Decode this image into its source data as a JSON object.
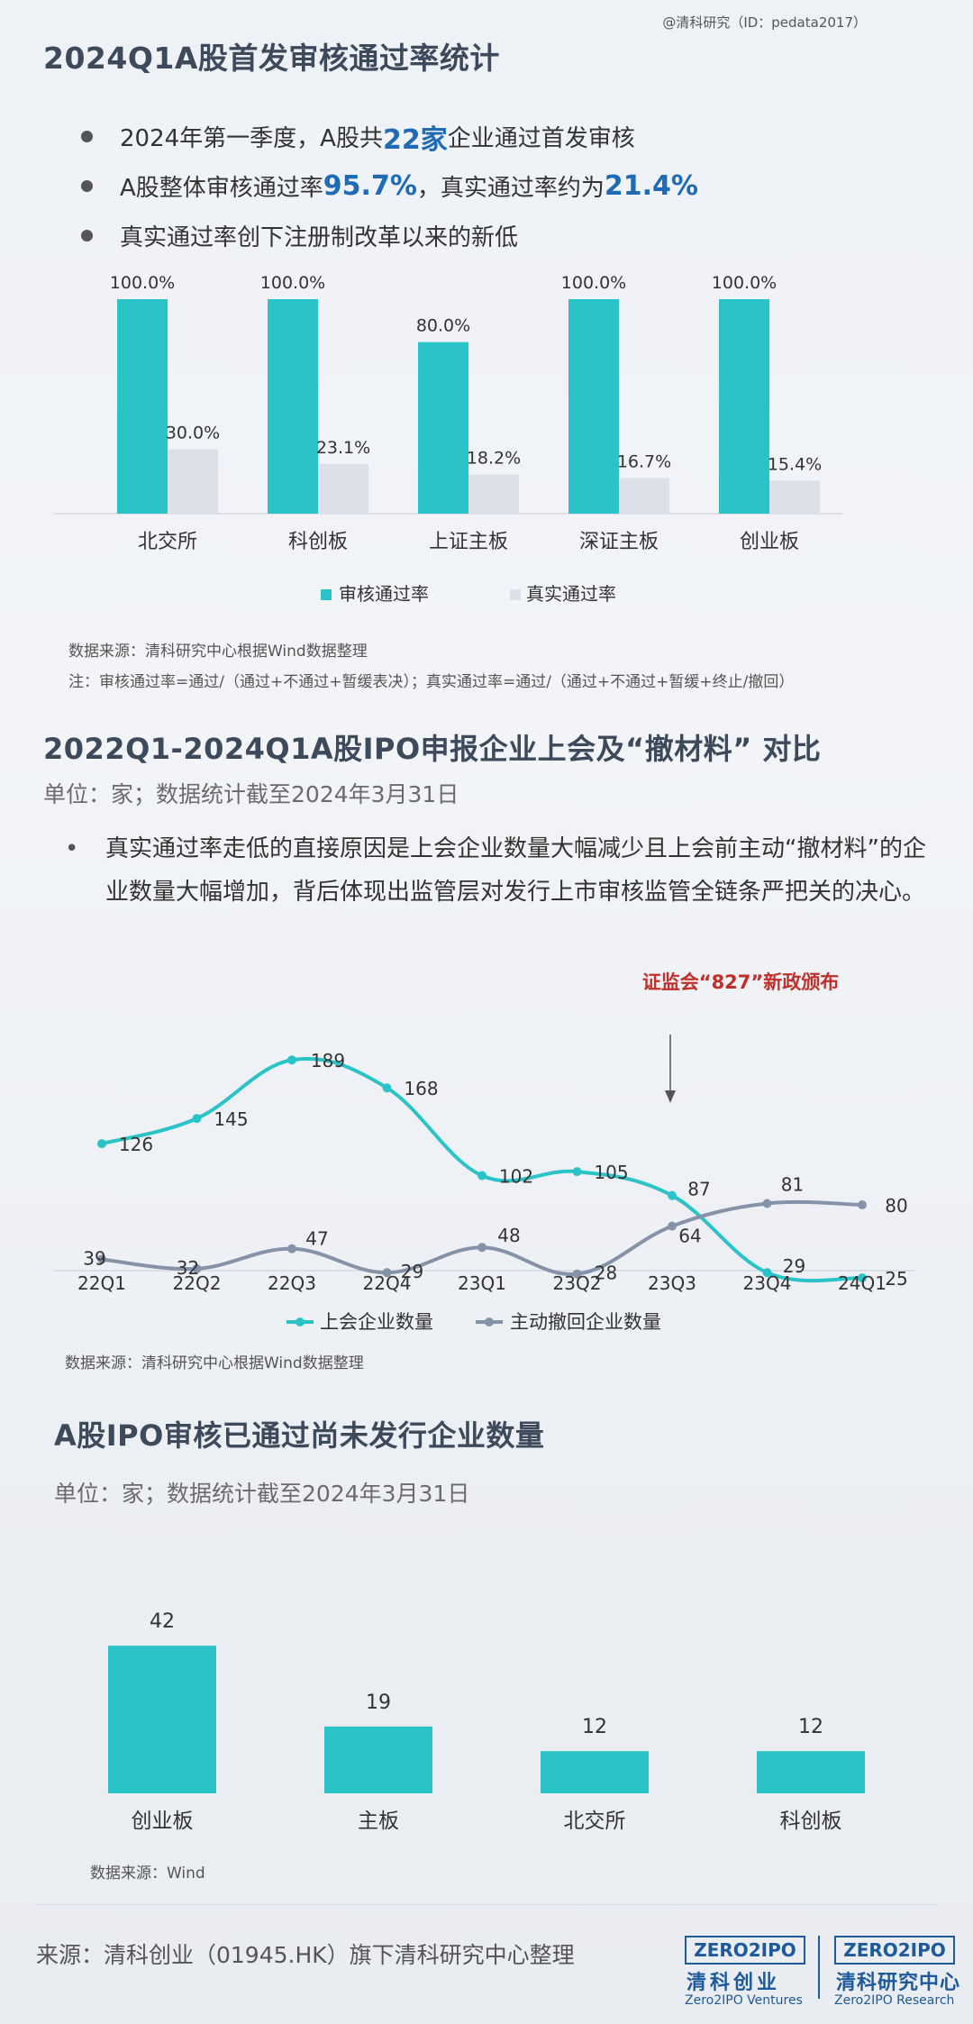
{
  "watermark": "@清科研究（ID：pedata2017）",
  "section1": {
    "title": "2024Q1A股首发审核通过率统计",
    "bullets": [
      {
        "pre": "2024年第一季度，A股共",
        "hl": "22家",
        "post": "企业通过首发审核"
      },
      {
        "pre": "A股整体审核通过率",
        "hl": "95.7%",
        "mid": "，真实通过率约为",
        "hl2": "21.4%"
      },
      {
        "pre": "真实通过率创下注册制改革以来的新低"
      }
    ],
    "source": "数据来源：清科研究中心根据Wind数据整理",
    "note": "注：审核通过率=通过/（通过+不通过+暂缓表决）；真实通过率=通过/（通过+不通过+暂缓+终止/撤回）"
  },
  "section2": {
    "title": "2022Q1-2024Q1A股IPO申报企业上会及“撤材料” 对比",
    "subtitle": "单位：家；数据统计截至2024年3月31日",
    "paragraph": "真实通过率走低的直接原因是上会企业数量大幅减少且上会前主动“撤材料”的企业数量大幅增加，背后体现出监管层对发行上市审核监管全链条严把关的决心。",
    "bullet_char": "•",
    "source": "数据来源：清科研究中心根据Wind数据整理"
  },
  "section3": {
    "title": "A股IPO审核已通过尚未发行企业数量",
    "subtitle": "单位：家；数据统计截至2024年3月31日",
    "source": "数据来源：Wind"
  },
  "footer": {
    "source": "来源：清科创业（01945.HK）旗下清科研究中心整理",
    "logo1": {
      "box": "ZERO2IPO",
      "zh": "清科创业",
      "en": "Zero2IPO Ventures"
    },
    "logo2": {
      "box": "ZERO2IPO",
      "zh": "清科研究中心",
      "en": "Zero2IPO Research"
    }
  },
  "colors": {
    "teal": "#2ac4c8",
    "gray_bar": "#dde0e8",
    "line_gray": "#8593a8",
    "annotation": "#c0302b",
    "title": "#3d4a5c"
  },
  "chart_data": [
    {
      "type": "bar",
      "categories": [
        "北交所",
        "科创板",
        "上证主板",
        "深证主板",
        "创业板"
      ],
      "series": [
        {
          "name": "审核通过率",
          "values": [
            100.0,
            100.0,
            80.0,
            100.0,
            100.0
          ],
          "labels": [
            "100.0%",
            "100.0%",
            "80.0%",
            "100.0%",
            "100.0%"
          ]
        },
        {
          "name": "真实通过率",
          "values": [
            30.0,
            23.1,
            18.2,
            16.7,
            15.4
          ],
          "labels": [
            "30.0%",
            "23.1%",
            "18.2%",
            "16.7%",
            "15.4%"
          ]
        }
      ],
      "ylim": [
        0,
        100
      ],
      "legend": "bottom"
    },
    {
      "type": "line",
      "categories": [
        "22Q1",
        "22Q2",
        "22Q3",
        "22Q4",
        "23Q1",
        "23Q2",
        "23Q3",
        "23Q4",
        "24Q1"
      ],
      "series": [
        {
          "name": "上会企业数量",
          "values": [
            126,
            145,
            189,
            168,
            102,
            105,
            87,
            29,
            25
          ]
        },
        {
          "name": "主动撤回企业数量",
          "values": [
            39,
            32,
            47,
            29,
            48,
            28,
            64,
            81,
            80
          ]
        }
      ],
      "annotation": {
        "text": "证监会“827”新政颁布",
        "category": "23Q3"
      },
      "legend": "bottom"
    },
    {
      "type": "bar",
      "categories": [
        "创业板",
        "主板",
        "北交所",
        "科创板"
      ],
      "values": [
        42,
        19,
        12,
        12
      ],
      "labels": [
        "42",
        "19",
        "12",
        "12"
      ]
    }
  ]
}
